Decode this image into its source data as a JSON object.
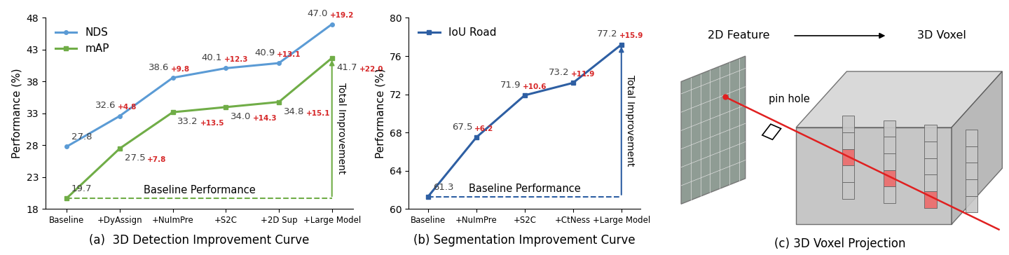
{
  "chart_data": [
    {
      "type": "line",
      "title": "(a)  3D Detection Improvement Curve",
      "y_label": "Performance (%)",
      "categories": [
        "Baseline",
        "+DyAssign",
        "+NuImPre",
        "+S2C",
        "+2D Sup",
        "+Large Model"
      ],
      "series": [
        {
          "name": "NDS",
          "color": "#5b9bd5",
          "marker": "o",
          "values": [
            27.8,
            32.6,
            38.6,
            40.1,
            40.9,
            47.0
          ],
          "deltas": [
            null,
            "+4.8",
            "+9.8",
            "+12.3",
            "+13.1",
            "+19.2"
          ]
        },
        {
          "name": "mAP",
          "color": "#70ad47",
          "marker": "s",
          "values": [
            19.7,
            27.5,
            33.2,
            34.0,
            34.8,
            41.7
          ],
          "deltas": [
            null,
            "+7.8",
            "+13.5",
            "+14.3",
            "+15.1",
            "+22.0"
          ]
        }
      ],
      "ylim": [
        18,
        48
      ],
      "yticks": [
        18,
        23,
        28,
        33,
        38,
        43,
        48
      ],
      "legend": "upper left",
      "data_labels": true,
      "grid": false,
      "annotations": [
        {
          "type": "baseline",
          "text": "Baseline Performance"
        },
        {
          "type": "total",
          "text": "Total Improvement"
        }
      ]
    },
    {
      "type": "line",
      "title": "(b) Segmentation Improvement Curve",
      "y_label": "Performance (%)",
      "categories": [
        "Baseline",
        "+NuImPre",
        "+S2C",
        "+CtNess",
        "+Large Model"
      ],
      "series": [
        {
          "name": "IoU Road",
          "color": "#2e5fa3",
          "marker": "s",
          "values": [
            61.3,
            67.5,
            71.9,
            73.2,
            77.2
          ],
          "deltas": [
            null,
            "+6.2",
            "+10.6",
            "+11.9",
            "+15.9"
          ]
        }
      ],
      "ylim": [
        60,
        80
      ],
      "yticks": [
        60,
        64,
        68,
        72,
        76,
        80
      ],
      "legend": "upper left",
      "data_labels": true,
      "grid": false,
      "annotations": [
        {
          "type": "baseline",
          "text": "Baseline Performance"
        },
        {
          "type": "total",
          "text": "Total Improvement"
        }
      ]
    }
  ],
  "diagram": {
    "title": "(c) 3D Voxel Projection",
    "from": "2D Feature",
    "to": "3D Voxel",
    "labels": [
      "pin hole"
    ]
  }
}
